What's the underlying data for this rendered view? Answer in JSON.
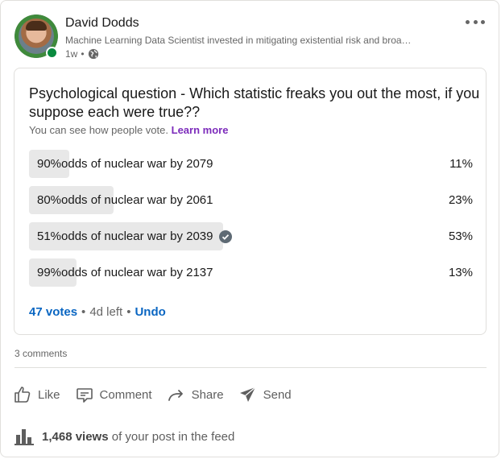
{
  "post": {
    "author_name": "David Dodds",
    "author_headline": "Machine Learning Data Scientist invested in mitigating existential risk and broa…",
    "time_ago": "1w",
    "separator": "•"
  },
  "poll": {
    "question": "Psychological question - Which statistic freaks you out the most, if you suppose each were true??",
    "note": "You can see how people vote.",
    "learn_more": "Learn more",
    "options": [
      {
        "label": "90%odds of nuclear war by 2079",
        "percent_text": "11%",
        "percent": 11,
        "selected": false
      },
      {
        "label": "80%odds of nuclear war by 2061",
        "percent_text": "23%",
        "percent": 23,
        "selected": false
      },
      {
        "label": "51%odds of nuclear war by 2039",
        "percent_text": "53%",
        "percent": 53,
        "selected": true
      },
      {
        "label": "99%odds of nuclear war by 2137",
        "percent_text": "13%",
        "percent": 13,
        "selected": false
      }
    ],
    "votes": "47 votes",
    "time_left": "4d left",
    "undo": "Undo",
    "dot": "•"
  },
  "social": {
    "comments": "3 comments"
  },
  "actions": {
    "like": "Like",
    "comment": "Comment",
    "share": "Share",
    "send": "Send"
  },
  "analytics": {
    "views_count": "1,468 views",
    "views_suffix": "of your post in the feed"
  },
  "colors": {
    "link_blue": "#0a66c2",
    "learn_more_purple": "#7c2bbb",
    "online_green": "#0a8a3f",
    "bar_gray": "#e8e8e8"
  },
  "icons": [
    "globe-icon",
    "more-icon",
    "check-icon",
    "like-icon",
    "comment-icon",
    "share-icon",
    "send-icon",
    "chart-icon"
  ]
}
